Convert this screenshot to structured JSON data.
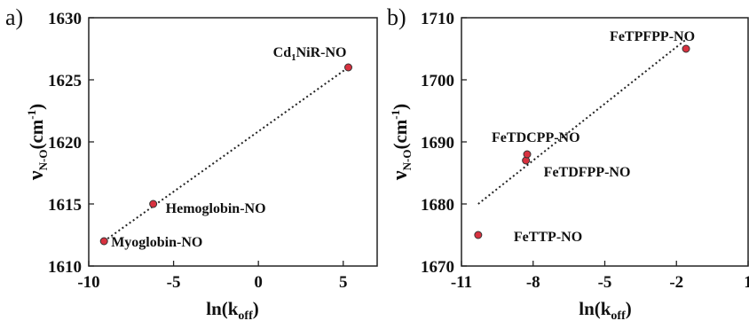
{
  "chart_data": [
    {
      "panel_label": "a)",
      "type": "scatter",
      "xlabel": "ln(k",
      "xlabel_sub": "off",
      "xlabel_close": ")",
      "ylabel": "ν",
      "ylabel_sub": "N-O",
      "ylabel_unit": "(cm",
      "ylabel_unit_sup": "-1",
      "ylabel_unit_close": ")",
      "xlim": [
        -10,
        7
      ],
      "ylim": [
        1610,
        1630
      ],
      "xticks": [
        -10,
        -5,
        0,
        5
      ],
      "xtick_labels": [
        "-10",
        "-5",
        "0",
        "5"
      ],
      "yticks": [
        1610,
        1615,
        1620,
        1625,
        1630
      ],
      "ytick_labels": [
        "1610",
        "1615",
        "1620",
        "1625",
        "1630"
      ],
      "points": [
        {
          "x": -9.1,
          "y": 1612,
          "label": "Myoglobin-NO"
        },
        {
          "x": -6.2,
          "y": 1615,
          "label": "Hemoglobin-NO"
        },
        {
          "x": 5.3,
          "y": 1626,
          "label": "Cd",
          "label_sub": "1",
          "label_rest": "NiR-NO"
        }
      ],
      "trendline": {
        "x": [
          -9.1,
          5.3
        ],
        "y": [
          1612,
          1626
        ],
        "style": "dotted"
      },
      "grid": false,
      "marker_color": "#d8313f"
    },
    {
      "panel_label": "b)",
      "type": "scatter",
      "xlabel": "ln(k",
      "xlabel_sub": "off",
      "xlabel_close": ")",
      "ylabel": "ν",
      "ylabel_sub": "N-O",
      "ylabel_unit": "(cm",
      "ylabel_unit_sup": "-1",
      "ylabel_unit_close": ")",
      "xlim": [
        -11,
        1
      ],
      "ylim": [
        1670,
        1710
      ],
      "xticks": [
        -11,
        -8,
        -5,
        -2,
        1
      ],
      "xtick_labels": [
        "-11",
        "-8",
        "-5",
        "-2",
        "1"
      ],
      "yticks": [
        1670,
        1680,
        1690,
        1700,
        1710
      ],
      "ytick_labels": [
        "1670",
        "1680",
        "1690",
        "1700",
        "1710"
      ],
      "points": [
        {
          "x": -10.3,
          "y": 1675,
          "label": "FeTTP-NO"
        },
        {
          "x": -8.3,
          "y": 1687,
          "label": "FeTDFPP-NO"
        },
        {
          "x": -8.25,
          "y": 1688,
          "label": "FeTDCPP-NO"
        },
        {
          "x": -1.6,
          "y": 1705,
          "label": "FeTPFPP-NO"
        }
      ],
      "trendline": {
        "x": [
          -10.3,
          -1.6
        ],
        "y": [
          1680,
          1706.5
        ],
        "style": "dotted"
      },
      "grid": false,
      "marker_color": "#d8313f"
    }
  ]
}
